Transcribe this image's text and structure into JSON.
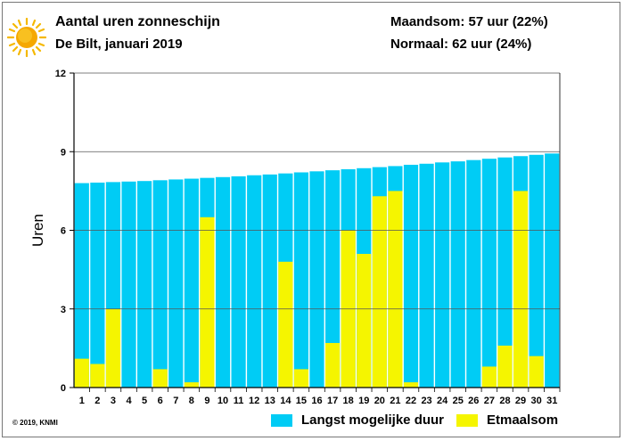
{
  "header": {
    "title": "Aantal uren zonneschijn",
    "subtitle": "De Bilt, januari 2019",
    "month_total": "Maandsom: 57 uur (22%)",
    "normal": "Normaal: 62 uur (24%)"
  },
  "footer": {
    "copyright": "© 2019, KNMI"
  },
  "colors": {
    "possible": "#00ccf5",
    "actual": "#f5f500",
    "sun": "#f5b800"
  },
  "chart_data": {
    "type": "bar",
    "ylabel": "Uren",
    "ylim": [
      0,
      12
    ],
    "yticks": [
      "0",
      "3",
      "6",
      "9",
      "12"
    ],
    "categories": [
      "1",
      "2",
      "3",
      "4",
      "5",
      "6",
      "7",
      "8",
      "9",
      "10",
      "11",
      "12",
      "13",
      "14",
      "15",
      "16",
      "17",
      "18",
      "19",
      "20",
      "21",
      "22",
      "23",
      "24",
      "25",
      "26",
      "27",
      "28",
      "29",
      "30",
      "31"
    ],
    "series": [
      {
        "name": "Langst mogelijke duur",
        "values": [
          7.8,
          7.82,
          7.84,
          7.86,
          7.88,
          7.91,
          7.94,
          7.97,
          8.0,
          8.03,
          8.06,
          8.1,
          8.13,
          8.17,
          8.21,
          8.25,
          8.29,
          8.33,
          8.37,
          8.41,
          8.45,
          8.5,
          8.54,
          8.59,
          8.63,
          8.68,
          8.73,
          8.78,
          8.83,
          8.88,
          8.93
        ]
      },
      {
        "name": "Etmaalsom",
        "values": [
          1.1,
          0.9,
          3.0,
          0,
          0,
          0.7,
          0,
          0.2,
          6.5,
          0,
          0,
          0,
          0,
          4.8,
          0.7,
          0,
          1.7,
          6.0,
          5.1,
          7.3,
          7.5,
          0.2,
          0,
          0,
          0,
          0,
          0.8,
          1.6,
          7.5,
          1.2,
          0
        ]
      }
    ],
    "grid": true,
    "legend_position": "bottom-right"
  }
}
